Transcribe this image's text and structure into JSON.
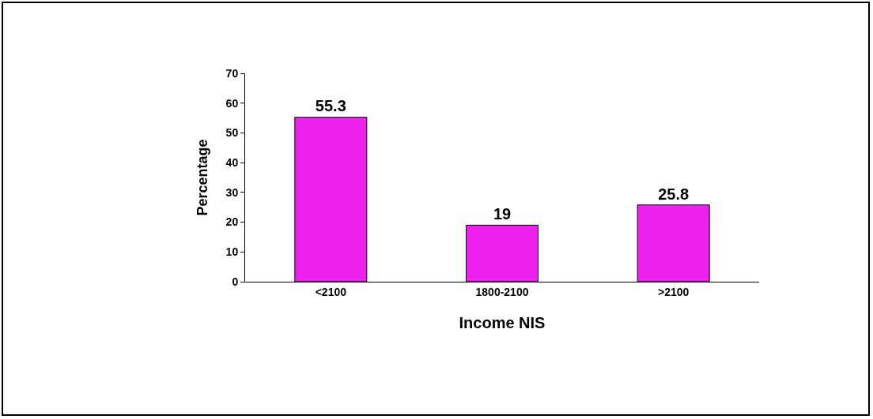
{
  "chart_data": {
    "type": "bar",
    "categories": [
      "<2100",
      "1800-2100",
      ">2100"
    ],
    "values": [
      55.3,
      19,
      25.8
    ],
    "color": "#ee22ee",
    "xlabel": "Income NIS",
    "ylabel": "Percentage",
    "ylim": [
      0,
      70
    ],
    "yticks": [
      0,
      10,
      20,
      30,
      40,
      50,
      60,
      70
    ],
    "data_labels": true
  }
}
